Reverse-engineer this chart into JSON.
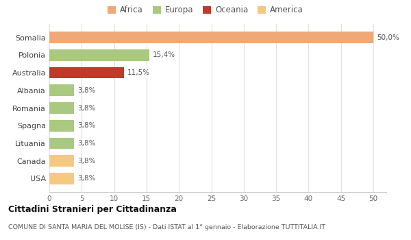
{
  "categories": [
    "USA",
    "Canada",
    "Lituania",
    "Spagna",
    "Romania",
    "Albania",
    "Australia",
    "Polonia",
    "Somalia"
  ],
  "values": [
    3.8,
    3.8,
    3.8,
    3.8,
    3.8,
    3.8,
    11.5,
    15.4,
    50.0
  ],
  "colors": [
    "#F5C97F",
    "#F5C97F",
    "#A8C97F",
    "#A8C97F",
    "#A8C97F",
    "#A8C97F",
    "#C0392B",
    "#A8C97F",
    "#F0A876"
  ],
  "labels": [
    "3,8%",
    "3,8%",
    "3,8%",
    "3,8%",
    "3,8%",
    "3,8%",
    "11,5%",
    "15,4%",
    "50,0%"
  ],
  "legend_items": [
    {
      "label": "Africa",
      "color": "#F0A876"
    },
    {
      "label": "Europa",
      "color": "#A8C97F"
    },
    {
      "label": "Oceania",
      "color": "#C0392B"
    },
    {
      "label": "America",
      "color": "#F5C97F"
    }
  ],
  "xlim": [
    0,
    52
  ],
  "xticks": [
    0,
    5,
    10,
    15,
    20,
    25,
    30,
    35,
    40,
    45,
    50
  ],
  "title": "Cittadini Stranieri per Cittadinanza",
  "subtitle": "COMUNE DI SANTA MARIA DEL MOLISE (IS) - Dati ISTAT al 1° gennaio - Elaborazione TUTTITALIA.IT",
  "bg_color": "#ffffff",
  "grid_color": "#e0e0e0"
}
